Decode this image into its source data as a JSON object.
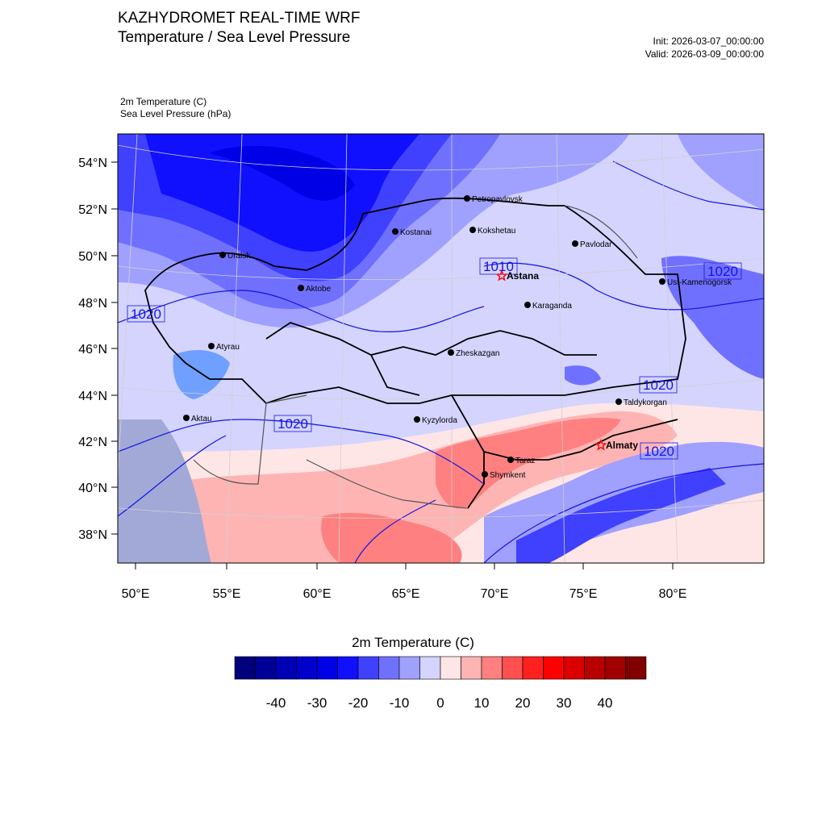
{
  "header": {
    "title": "KAZHYDROMET REAL-TIME WRF",
    "subtitle": "Temperature / Sea Level Pressure",
    "init": "Init: 2026-03-07_00:00:00",
    "valid": "Valid: 2026-03-09_00:00:00",
    "field1": "2m Temperature   (C)",
    "field2": "Sea Level Pressure   (hPa)"
  },
  "map": {
    "lat_ticks": [
      "54°N",
      "52°N",
      "50°N",
      "48°N",
      "46°N",
      "44°N",
      "42°N",
      "40°N",
      "38°N"
    ],
    "lon_ticks": [
      "50°E",
      "55°E",
      "60°E",
      "65°E",
      "70°E",
      "75°E",
      "80°E"
    ],
    "cities": [
      {
        "name": "Petropavlovsk",
        "capital": false
      },
      {
        "name": "Kostanai",
        "capital": false
      },
      {
        "name": "Kokshetau",
        "capital": false
      },
      {
        "name": "Pavlodar",
        "capital": false
      },
      {
        "name": "Uralsk",
        "capital": false
      },
      {
        "name": "Aktobe",
        "capital": false
      },
      {
        "name": "Astana",
        "capital": true
      },
      {
        "name": "Ust-Kamenogorsk",
        "capital": false
      },
      {
        "name": "Karaganda",
        "capital": false
      },
      {
        "name": "Atyrau",
        "capital": false
      },
      {
        "name": "Zheskazgan",
        "capital": false
      },
      {
        "name": "Taldykorgan",
        "capital": false
      },
      {
        "name": "Aktau",
        "capital": false
      },
      {
        "name": "Kyzylorda",
        "capital": false
      },
      {
        "name": "Almaty",
        "capital": true
      },
      {
        "name": "Taraz",
        "capital": false
      },
      {
        "name": "Shymkent",
        "capital": false
      }
    ],
    "isobar_labels": [
      "1010",
      "1020",
      "1020",
      "1020",
      "1020",
      "1020"
    ]
  },
  "colorbar": {
    "title": "2m Temperature  (C)",
    "tick_labels": [
      "-40",
      "-30",
      "-20",
      "-10",
      "0",
      "10",
      "20",
      "30",
      "40"
    ],
    "colors": [
      "#00007a",
      "#000096",
      "#0000b4",
      "#0000cc",
      "#0000e6",
      "#1010ff",
      "#4040ff",
      "#7070ff",
      "#a0a0ff",
      "#d4d4ff",
      "#ffe6e6",
      "#ffb4b4",
      "#ff8080",
      "#ff5050",
      "#ff2020",
      "#ff0000",
      "#dc0000",
      "#b80000",
      "#a00000",
      "#800000"
    ]
  }
}
